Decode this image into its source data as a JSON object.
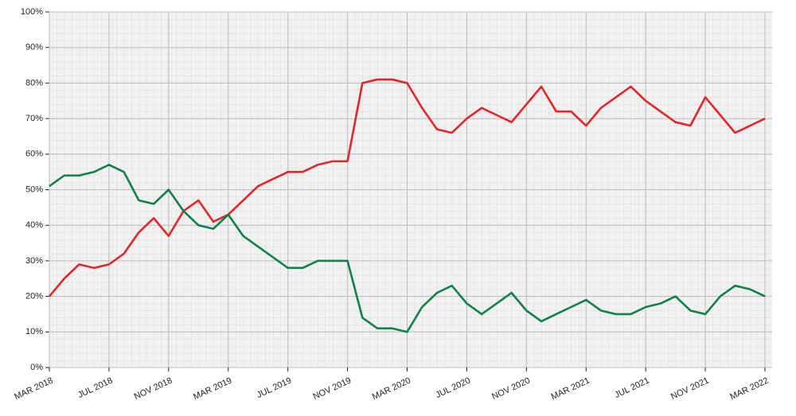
{
  "chart_data": {
    "type": "line",
    "x": [
      "2018-03",
      "2018-04",
      "2018-05",
      "2018-06",
      "2018-07",
      "2018-08",
      "2018-09",
      "2018-10",
      "2018-11",
      "2018-12",
      "2019-01",
      "2019-02",
      "2019-03",
      "2019-04",
      "2019-05",
      "2019-06",
      "2019-07",
      "2019-08",
      "2019-09",
      "2019-10",
      "2019-11",
      "2019-12",
      "2020-01",
      "2020-02",
      "2020-03",
      "2020-04",
      "2020-05",
      "2020-06",
      "2020-07",
      "2020-08",
      "2020-09",
      "2020-10",
      "2020-11",
      "2020-12",
      "2021-01",
      "2021-02",
      "2021-03",
      "2021-04",
      "2021-05",
      "2021-06",
      "2021-07",
      "2021-08",
      "2021-09",
      "2021-10",
      "2021-11",
      "2021-12",
      "2022-01",
      "2022-02",
      "2022-03"
    ],
    "series": [
      {
        "color": "#e3262b",
        "values": [
          20,
          25,
          29,
          28,
          29,
          32,
          38,
          42,
          37,
          44,
          47,
          41,
          43,
          47,
          51,
          53,
          55,
          55,
          57,
          58,
          58,
          80,
          81,
          81,
          80,
          73,
          67,
          66,
          70,
          73,
          71,
          69,
          74,
          79,
          72,
          72,
          68,
          73,
          76,
          79,
          75,
          72,
          69,
          68,
          76,
          71,
          66,
          68,
          70
        ]
      },
      {
        "color": "#12804a",
        "values": [
          51,
          54,
          54,
          55,
          57,
          55,
          47,
          46,
          50,
          44,
          40,
          39,
          43,
          37,
          34,
          31,
          28,
          28,
          30,
          30,
          30,
          14,
          11,
          11,
          10,
          17,
          21,
          23,
          18,
          15,
          18,
          21,
          16,
          13,
          15,
          17,
          19,
          16,
          15,
          15,
          17,
          18,
          20,
          16,
          15,
          20,
          23,
          22,
          20
        ]
      }
    ],
    "xlim": [
      "2018-03",
      "2022-03"
    ],
    "xticks": [
      {
        "value": "2018-03",
        "label": "MAR 2018"
      },
      {
        "value": "2018-07",
        "label": "JUL 2018"
      },
      {
        "value": "2018-11",
        "label": "NOV 2018"
      },
      {
        "value": "2019-03",
        "label": "MAR 2019"
      },
      {
        "value": "2019-07",
        "label": "JUL 2019"
      },
      {
        "value": "2019-11",
        "label": "NOV 2019"
      },
      {
        "value": "2020-03",
        "label": "MAR 2020"
      },
      {
        "value": "2020-07",
        "label": "JUL 2020"
      },
      {
        "value": "2020-11",
        "label": "NOV 2020"
      },
      {
        "value": "2021-03",
        "label": "MAR 2021"
      },
      {
        "value": "2021-07",
        "label": "JUL 2021"
      },
      {
        "value": "2021-11",
        "label": "NOV 2021"
      },
      {
        "value": "2022-03",
        "label": "MAR 2022"
      }
    ],
    "ylim": [
      0,
      100
    ],
    "yticks": [
      {
        "value": 0,
        "label": "0%"
      },
      {
        "value": 10,
        "label": "10%"
      },
      {
        "value": 20,
        "label": "20%"
      },
      {
        "value": 30,
        "label": "30%"
      },
      {
        "value": 40,
        "label": "40%"
      },
      {
        "value": 50,
        "label": "50%"
      },
      {
        "value": 60,
        "label": "60%"
      },
      {
        "value": 70,
        "label": "70%"
      },
      {
        "value": 80,
        "label": "80%"
      },
      {
        "value": 90,
        "label": "90%"
      },
      {
        "value": 100,
        "label": "100%"
      }
    ],
    "grid": true
  }
}
